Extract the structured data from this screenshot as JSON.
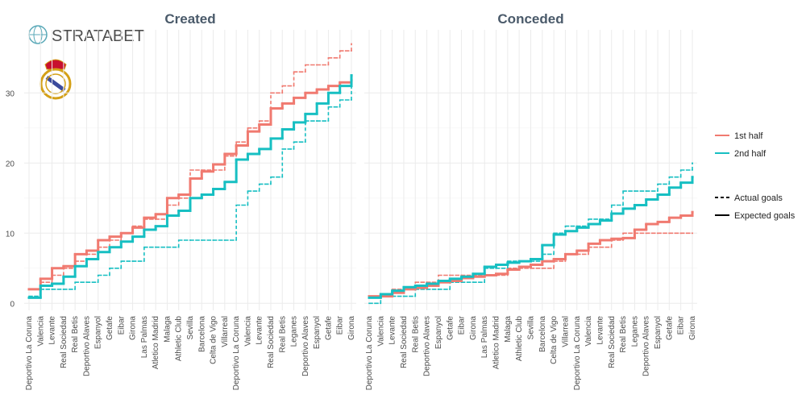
{
  "brand": "STRATABET",
  "legend": {
    "colors": [
      {
        "name": "1st half",
        "color": "#f07a70"
      },
      {
        "name": "2nd half",
        "color": "#17bfc2"
      }
    ],
    "linetypes": [
      {
        "name": "Actual goals",
        "dashed": true
      },
      {
        "name": "Expected goals",
        "dashed": false
      }
    ]
  },
  "chart_data": [
    {
      "type": "step",
      "title": "Created",
      "categories": [
        "Deportivo La Coruna",
        "Valencia",
        "Levante",
        "Real Sociedad",
        "Real Betis",
        "Deportivo Alaves",
        "Espanyol",
        "Getafe",
        "Eibar",
        "Girona",
        "Las Palmas",
        "Atletico Madrid",
        "Malaga",
        "Athletic Club",
        "Sevilla",
        "Barcelona",
        "Celta de Vigo",
        "Villarreal",
        "Deportivo La Coruna",
        "Valencia",
        "Levante",
        "Real Sociedad",
        "Real Betis",
        "Leganes",
        "Deportivo Alaves",
        "Espanyol",
        "Getafe",
        "Eibar",
        "Girona"
      ],
      "ylim": [
        -1,
        39
      ],
      "yticks": [
        0,
        10,
        20,
        30
      ],
      "grid": true,
      "series": [
        {
          "half": "1st half",
          "kind": "Actual goals",
          "color": "#f07a70",
          "dashed": true,
          "values": [
            2,
            3,
            4,
            5,
            6,
            7,
            8,
            9,
            10,
            11,
            12,
            12,
            14,
            15,
            19,
            19,
            19,
            21,
            23,
            25,
            26,
            30,
            31,
            33,
            34,
            34,
            35,
            36,
            37
          ]
        },
        {
          "half": "2nd half",
          "kind": "Actual goals",
          "color": "#17bfc2",
          "dashed": true,
          "values": [
            1,
            2,
            2,
            2,
            3,
            3,
            4,
            5,
            6,
            6,
            8,
            8,
            8,
            9,
            9,
            9,
            9,
            9,
            14,
            16,
            17,
            18,
            22,
            23,
            26,
            26,
            28,
            29,
            31
          ]
        },
        {
          "half": "1st half",
          "kind": "Expected goals",
          "color": "#f07a70",
          "dashed": false,
          "values": [
            2,
            3.5,
            5,
            5.3,
            7,
            7.5,
            9,
            9.5,
            10,
            10.8,
            12.2,
            12.7,
            15,
            15.5,
            17.8,
            18.8,
            19.8,
            21.3,
            22.5,
            24.5,
            25.5,
            27.8,
            28.5,
            29.3,
            30,
            30.5,
            31,
            31.5,
            31.8
          ]
        },
        {
          "half": "2nd half",
          "kind": "Expected goals",
          "color": "#17bfc2",
          "dashed": false,
          "values": [
            0.8,
            2.5,
            2.8,
            3.8,
            5.3,
            6.3,
            7.3,
            8,
            8.8,
            9.5,
            10.5,
            11,
            12.5,
            13.2,
            15,
            15.5,
            16.3,
            17.3,
            20.5,
            21.3,
            22,
            23.5,
            24.8,
            25.8,
            27,
            28.5,
            30,
            31,
            32.5
          ]
        }
      ]
    },
    {
      "type": "step",
      "title": "Conceded",
      "categories": [
        "Deportivo La Coruna",
        "Valencia",
        "Levante",
        "Real Sociedad",
        "Real Betis",
        "Deportivo Alaves",
        "Espanyol",
        "Getafe",
        "Eibar",
        "Girona",
        "Las Palmas",
        "Atletico Madrid",
        "Malaga",
        "Athletic Club",
        "Sevilla",
        "Barcelona",
        "Celta de Vigo",
        "Villarreal",
        "Deportivo La Coruna",
        "Valencia",
        "Levante",
        "Real Sociedad",
        "Real Betis",
        "Leganes",
        "Deportivo Alaves",
        "Espanyol",
        "Getafe",
        "Eibar",
        "Girona"
      ],
      "ylim": [
        -1,
        39
      ],
      "yticks": [
        0,
        10,
        20,
        30
      ],
      "grid": true,
      "series": [
        {
          "half": "1st half",
          "kind": "Actual goals",
          "color": "#f07a70",
          "dashed": true,
          "values": [
            1,
            1,
            2,
            2,
            3,
            3,
            4,
            4,
            4,
            4,
            4,
            4,
            5,
            5,
            5,
            5,
            6,
            7,
            7,
            8,
            8,
            9,
            10,
            10,
            10,
            10,
            10,
            10,
            10
          ]
        },
        {
          "half": "2nd half",
          "kind": "Actual goals",
          "color": "#17bfc2",
          "dashed": true,
          "values": [
            0,
            1,
            1,
            1,
            2,
            2,
            2,
            3,
            3,
            3,
            5,
            5,
            6,
            6,
            6,
            7,
            10,
            11,
            11,
            12,
            12,
            14,
            16,
            16,
            16,
            17,
            18,
            19,
            20
          ]
        },
        {
          "half": "1st half",
          "kind": "Expected goals",
          "color": "#f07a70",
          "dashed": false,
          "values": [
            1,
            1,
            1.5,
            2,
            2.2,
            2.5,
            3,
            3.2,
            3.6,
            3.8,
            4,
            4.2,
            4.8,
            5.2,
            5.5,
            6,
            6.3,
            7,
            7.5,
            8.5,
            9,
            9.2,
            9.3,
            10.5,
            11.3,
            11.6,
            12.2,
            12.5,
            13
          ]
        },
        {
          "half": "2nd half",
          "kind": "Expected goals",
          "color": "#17bfc2",
          "dashed": false,
          "values": [
            0.8,
            1.3,
            1.8,
            2.3,
            2.5,
            2.8,
            3.2,
            3.5,
            3.8,
            4.2,
            5.2,
            5.5,
            5.8,
            6,
            6.3,
            8.3,
            9.8,
            10.3,
            10.8,
            11.3,
            11.8,
            12.8,
            13.5,
            14,
            14.8,
            15.5,
            16.5,
            17.2,
            18
          ]
        }
      ]
    }
  ]
}
